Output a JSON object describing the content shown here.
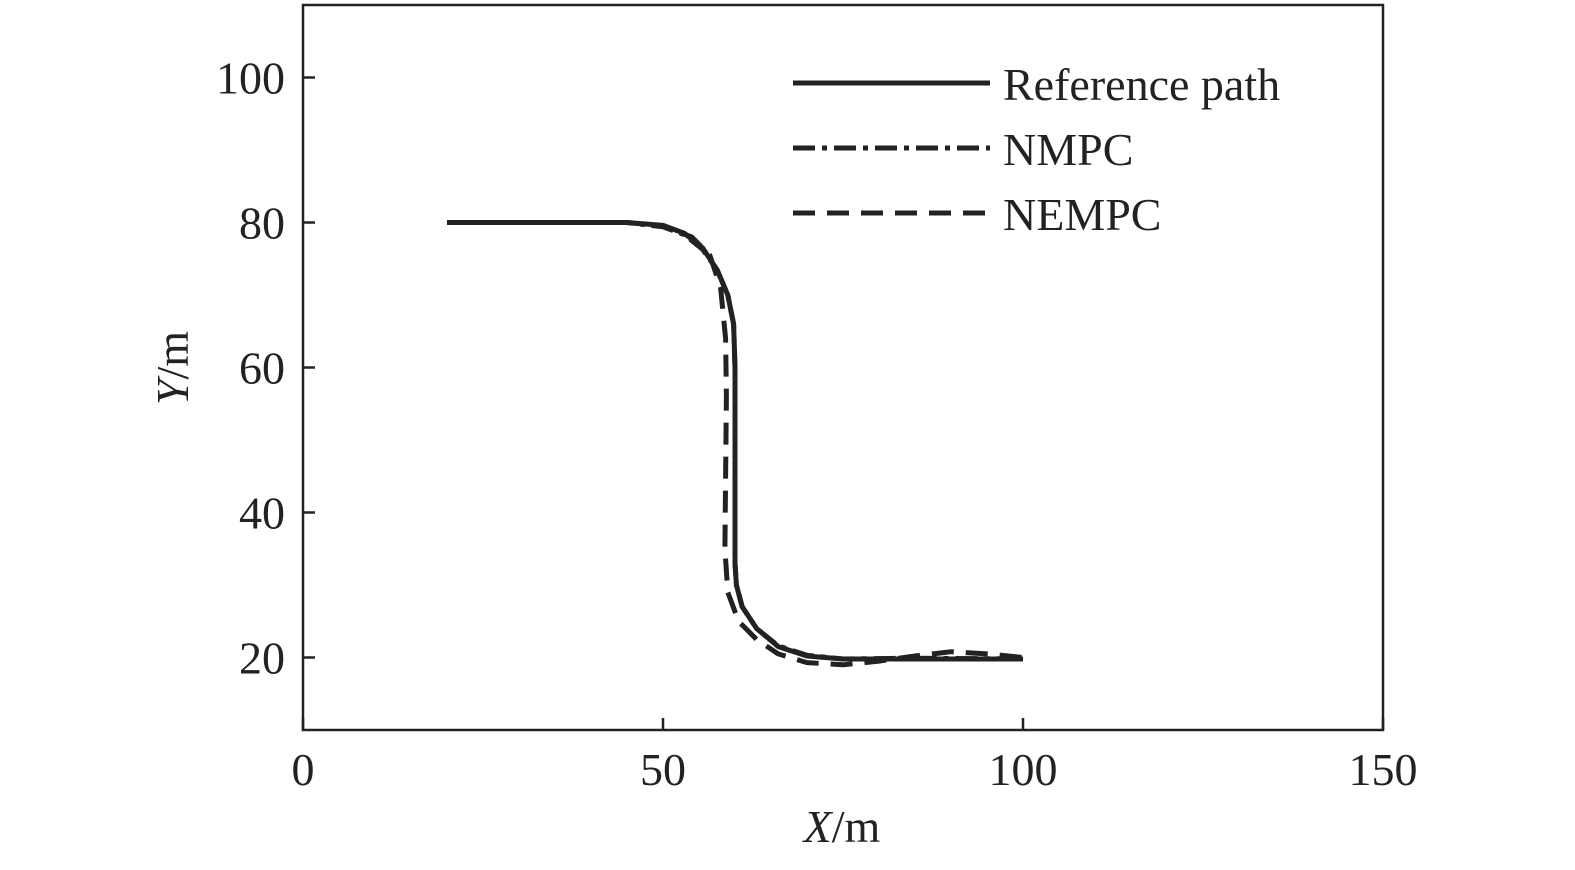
{
  "chart_data": {
    "type": "line",
    "title": "",
    "xlabel": {
      "var": "X",
      "unit": "/m"
    },
    "ylabel": {
      "var": "Y",
      "unit": "/m"
    },
    "xlim": [
      0,
      150
    ],
    "ylim": [
      10,
      110
    ],
    "xticks": [
      0,
      50,
      100,
      150
    ],
    "yticks": [
      20,
      40,
      60,
      80,
      100
    ],
    "x_tick_labels": [
      "0",
      "50",
      "100",
      "150"
    ],
    "y_tick_labels": [
      "20",
      "40",
      "60",
      "80",
      "100"
    ],
    "grid": false,
    "legend_position": "top-right",
    "colors": {
      "line": "#222222",
      "axis": "#222222"
    },
    "series": [
      {
        "name": "Reference path",
        "style": "solid",
        "x": [
          20,
          30,
          45,
          50,
          53,
          55.5,
          57.5,
          59,
          59.8,
          60,
          60,
          60.2,
          61,
          63,
          66,
          70,
          75,
          85,
          100
        ],
        "y": [
          80,
          80,
          80,
          79.6,
          78.5,
          76.5,
          73.5,
          70,
          66,
          60,
          33,
          30,
          27,
          24,
          21.5,
          20.2,
          19.8,
          19.8,
          19.8
        ]
      },
      {
        "name": "NMPC",
        "style": "dashdot",
        "x": [
          20,
          30,
          45,
          50,
          53,
          55.5,
          57.5,
          59,
          59.8,
          60,
          60,
          60.2,
          61,
          63,
          66,
          70,
          75,
          85,
          100
        ],
        "y": [
          80,
          80,
          80,
          79.4,
          78.3,
          76.3,
          73.5,
          70,
          66,
          60,
          33,
          30,
          27,
          24,
          21.6,
          20.3,
          19.8,
          19.9,
          19.8
        ]
      },
      {
        "name": "NEMPC",
        "style": "dashed",
        "x": [
          20,
          30,
          45,
          50,
          54,
          56.5,
          58,
          58.7,
          58.8,
          58.7,
          58.6,
          59,
          60.5,
          63,
          66,
          70,
          75,
          80,
          85,
          90,
          95,
          100
        ],
        "y": [
          80,
          80,
          80,
          79.5,
          78,
          75.5,
          71,
          64,
          56,
          45,
          35,
          29,
          25,
          22.5,
          20.5,
          19.3,
          19,
          19.5,
          20.2,
          20.8,
          20.5,
          20
        ]
      }
    ]
  }
}
